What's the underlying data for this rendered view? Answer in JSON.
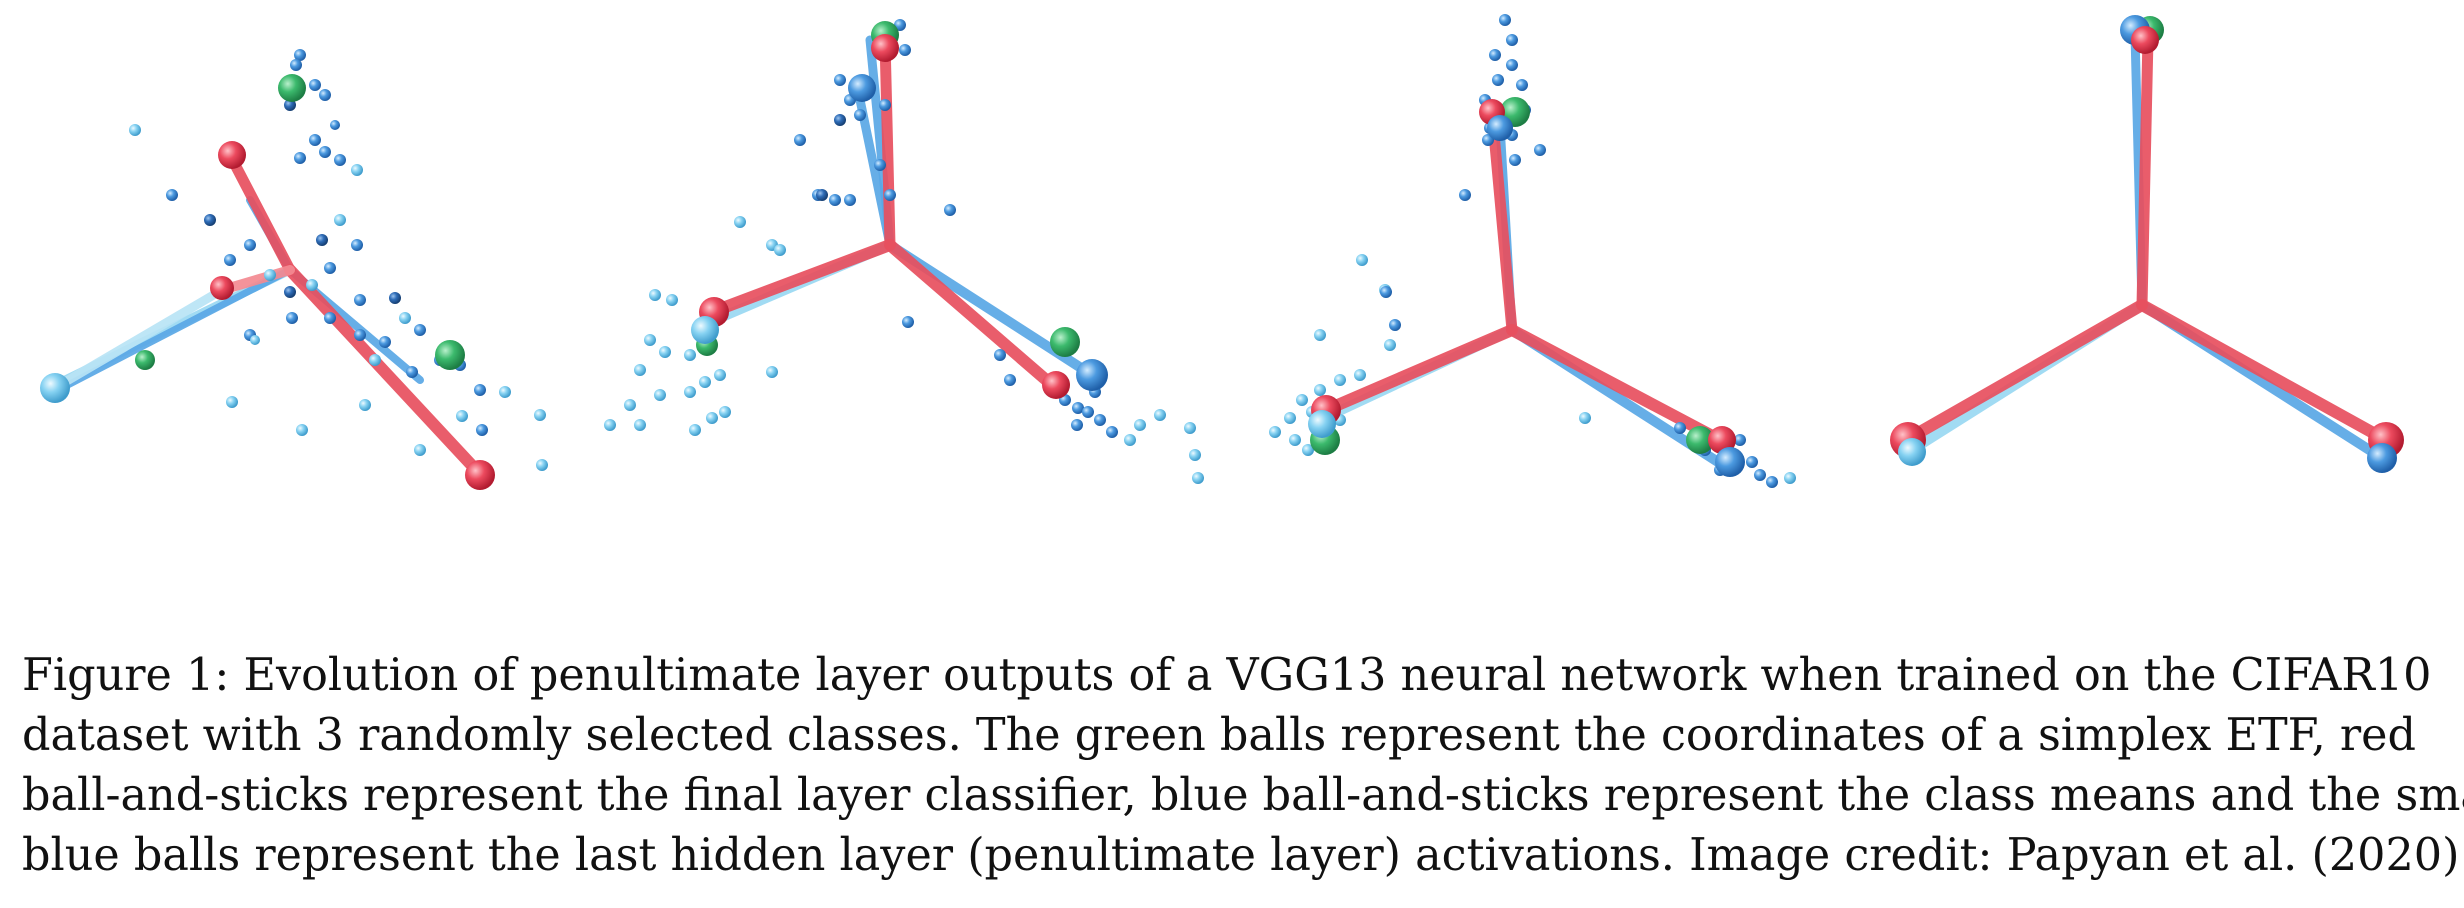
{
  "figure": {
    "panels": [
      {
        "name": "panel-1",
        "stick_colors": {
          "classifier": "#e8505f",
          "class_mean": "#5aa8e6"
        },
        "simplex_etf_color": "#39b36a",
        "activation_colors": [
          "#4a90d9",
          "#7ec8ef",
          "#2f6fb8"
        ]
      },
      {
        "name": "panel-2"
      },
      {
        "name": "panel-3"
      },
      {
        "name": "panel-4"
      }
    ]
  },
  "caption": {
    "lines": [
      "Figure 1: Evolution of penultimate layer outputs of a VGG13 neural network when trained on the CIFAR10",
      "dataset with 3 randomly selected classes. The green balls represent the coordinates of a simplex ETF, red",
      "ball-and-sticks represent the final layer classifier, blue ball-and-sticks represent the class means and the small",
      "blue balls represent the last hidden layer (penultimate layer) activations. Image credit: Papyan et al. (2020)"
    ]
  }
}
